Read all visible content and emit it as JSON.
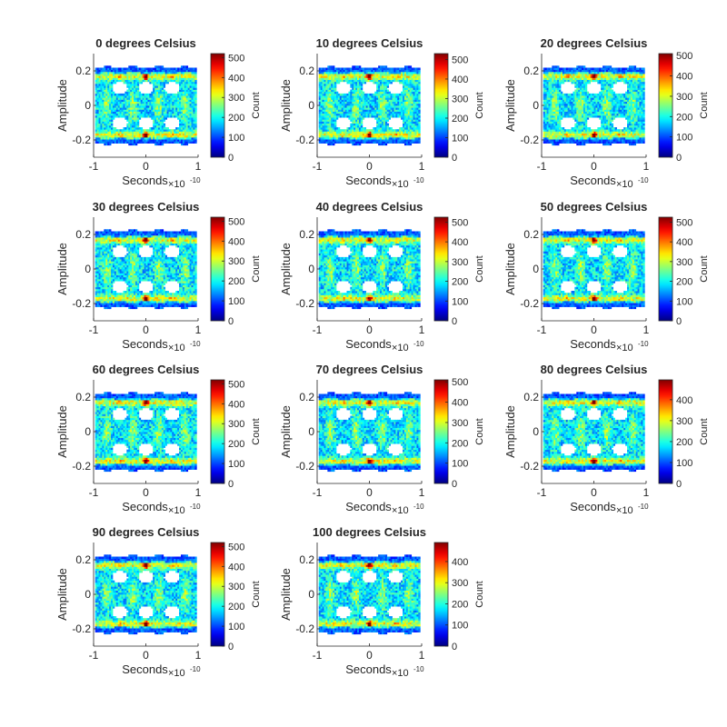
{
  "figure": {
    "background": "#ffffff"
  },
  "chart_data": [
    {
      "type": "heatmap",
      "chart_kind": "eye-diagram",
      "title": "0 degrees Celsius",
      "xlabel": "Seconds",
      "ylabel": "Amplitude",
      "xlim": [
        -1,
        1
      ],
      "ylim": [
        -0.3,
        0.3
      ],
      "x_exponent_label": "×10",
      "x_exponent": "-10",
      "x_ticks": [
        "-1",
        "0",
        "1"
      ],
      "y_ticks": [
        "0.2",
        "0",
        "-0.2"
      ],
      "colorbar_label": "Count",
      "colorbar_ticks": [
        "500",
        "400",
        "300",
        "200",
        "100",
        "0"
      ],
      "colorbar_max": 520,
      "colormap": "jet"
    },
    {
      "type": "heatmap",
      "chart_kind": "eye-diagram",
      "title": "10 degrees Celsius",
      "xlabel": "Seconds",
      "ylabel": "Amplitude",
      "xlim": [
        -1,
        1
      ],
      "ylim": [
        -0.3,
        0.3
      ],
      "x_exponent_label": "×10",
      "x_exponent": "-10",
      "x_ticks": [
        "-1",
        "0",
        "1"
      ],
      "y_ticks": [
        "0.2",
        "0",
        "-0.2"
      ],
      "colorbar_label": "Count",
      "colorbar_ticks": [
        "500",
        "400",
        "300",
        "200",
        "100",
        "0"
      ],
      "colorbar_max": 530,
      "colormap": "jet"
    },
    {
      "type": "heatmap",
      "chart_kind": "eye-diagram",
      "title": "20 degrees Celsius",
      "xlabel": "Seconds",
      "ylabel": "Amplitude",
      "xlim": [
        -1,
        1
      ],
      "ylim": [
        -0.3,
        0.3
      ],
      "x_exponent_label": "×10",
      "x_exponent": "-10",
      "x_ticks": [
        "-1",
        "0",
        "1"
      ],
      "y_ticks": [
        "0.2",
        "0",
        "-0.2"
      ],
      "colorbar_label": "Count",
      "colorbar_ticks": [
        "500",
        "400",
        "300",
        "200",
        "100",
        "0"
      ],
      "colorbar_max": 510,
      "colormap": "jet"
    },
    {
      "type": "heatmap",
      "chart_kind": "eye-diagram",
      "title": "30 degrees Celsius",
      "xlabel": "Seconds",
      "ylabel": "Amplitude",
      "xlim": [
        -1,
        1
      ],
      "ylim": [
        -0.3,
        0.3
      ],
      "x_exponent_label": "×10",
      "x_exponent": "-10",
      "x_ticks": [
        "-1",
        "0",
        "1"
      ],
      "y_ticks": [
        "0.2",
        "0",
        "-0.2"
      ],
      "colorbar_label": "Count",
      "colorbar_ticks": [
        "500",
        "400",
        "300",
        "200",
        "100",
        "0"
      ],
      "colorbar_max": 520,
      "colormap": "jet"
    },
    {
      "type": "heatmap",
      "chart_kind": "eye-diagram",
      "title": "40 degrees Celsius",
      "xlabel": "Seconds",
      "ylabel": "Amplitude",
      "xlim": [
        -1,
        1
      ],
      "ylim": [
        -0.3,
        0.3
      ],
      "x_exponent_label": "×10",
      "x_exponent": "-10",
      "x_ticks": [
        "-1",
        "0",
        "1"
      ],
      "y_ticks": [
        "0.2",
        "0",
        "-0.2"
      ],
      "colorbar_label": "Count",
      "colorbar_ticks": [
        "500",
        "400",
        "300",
        "200",
        "100",
        "0"
      ],
      "colorbar_max": 525,
      "colormap": "jet"
    },
    {
      "type": "heatmap",
      "chart_kind": "eye-diagram",
      "title": "50 degrees Celsius",
      "xlabel": "Seconds",
      "ylabel": "Amplitude",
      "xlim": [
        -1,
        1
      ],
      "ylim": [
        -0.3,
        0.3
      ],
      "x_exponent_label": "×10",
      "x_exponent": "-10",
      "x_ticks": [
        "-1",
        "0",
        "1"
      ],
      "y_ticks": [
        "0.2",
        "0",
        "-0.2"
      ],
      "colorbar_label": "Count",
      "colorbar_ticks": [
        "500",
        "400",
        "300",
        "200",
        "100",
        "0"
      ],
      "colorbar_max": 525,
      "colormap": "jet"
    },
    {
      "type": "heatmap",
      "chart_kind": "eye-diagram",
      "title": "60 degrees Celsius",
      "xlabel": "Seconds",
      "ylabel": "Amplitude",
      "xlim": [
        -1,
        1
      ],
      "ylim": [
        -0.3,
        0.3
      ],
      "x_exponent_label": "×10",
      "x_exponent": "-10",
      "x_ticks": [
        "-1",
        "0",
        "1"
      ],
      "y_ticks": [
        "0.2",
        "0",
        "-0.2"
      ],
      "colorbar_label": "Count",
      "colorbar_ticks": [
        "500",
        "400",
        "300",
        "200",
        "100",
        "0"
      ],
      "colorbar_max": 520,
      "colormap": "jet"
    },
    {
      "type": "heatmap",
      "chart_kind": "eye-diagram",
      "title": "70 degrees Celsius",
      "xlabel": "Seconds",
      "ylabel": "Amplitude",
      "xlim": [
        -1,
        1
      ],
      "ylim": [
        -0.3,
        0.3
      ],
      "x_exponent_label": "×10",
      "x_exponent": "-10",
      "x_ticks": [
        "-1",
        "0",
        "1"
      ],
      "y_ticks": [
        "0.2",
        "0",
        "-0.2"
      ],
      "colorbar_label": "Count",
      "colorbar_ticks": [
        "500",
        "400",
        "300",
        "200",
        "100",
        "0"
      ],
      "colorbar_max": 510,
      "colormap": "jet"
    },
    {
      "type": "heatmap",
      "chart_kind": "eye-diagram",
      "title": "80 degrees Celsius",
      "xlabel": "Seconds",
      "ylabel": "Amplitude",
      "xlim": [
        -1,
        1
      ],
      "ylim": [
        -0.3,
        0.3
      ],
      "x_exponent_label": "×10",
      "x_exponent": "-10",
      "x_ticks": [
        "-1",
        "0",
        "1"
      ],
      "y_ticks": [
        "0.2",
        "0",
        "-0.2"
      ],
      "colorbar_label": "Count",
      "colorbar_ticks": [
        "400",
        "300",
        "200",
        "100",
        "0"
      ],
      "colorbar_max": 495,
      "colormap": "jet"
    },
    {
      "type": "heatmap",
      "chart_kind": "eye-diagram",
      "title": "90 degrees Celsius",
      "xlabel": "Seconds",
      "ylabel": "Amplitude",
      "xlim": [
        -1,
        1
      ],
      "ylim": [
        -0.3,
        0.3
      ],
      "x_exponent_label": "×10",
      "x_exponent": "-10",
      "x_ticks": [
        "-1",
        "0",
        "1"
      ],
      "y_ticks": [
        "0.2",
        "0",
        "-0.2"
      ],
      "colorbar_label": "Count",
      "colorbar_ticks": [
        "500",
        "400",
        "300",
        "200",
        "100",
        "0"
      ],
      "colorbar_max": 520,
      "colormap": "jet"
    },
    {
      "type": "heatmap",
      "chart_kind": "eye-diagram",
      "title": "100 degrees Celsius",
      "xlabel": "Seconds",
      "ylabel": "Amplitude",
      "xlim": [
        -1,
        1
      ],
      "ylim": [
        -0.3,
        0.3
      ],
      "x_exponent_label": "×10",
      "x_exponent": "-10",
      "x_ticks": [
        "-1",
        "0",
        "1"
      ],
      "y_ticks": [
        "0.2",
        "0",
        "-0.2"
      ],
      "colorbar_label": "Count",
      "colorbar_ticks": [
        "400",
        "300",
        "200",
        "100",
        "0"
      ],
      "colorbar_max": 490,
      "colormap": "jet"
    }
  ]
}
